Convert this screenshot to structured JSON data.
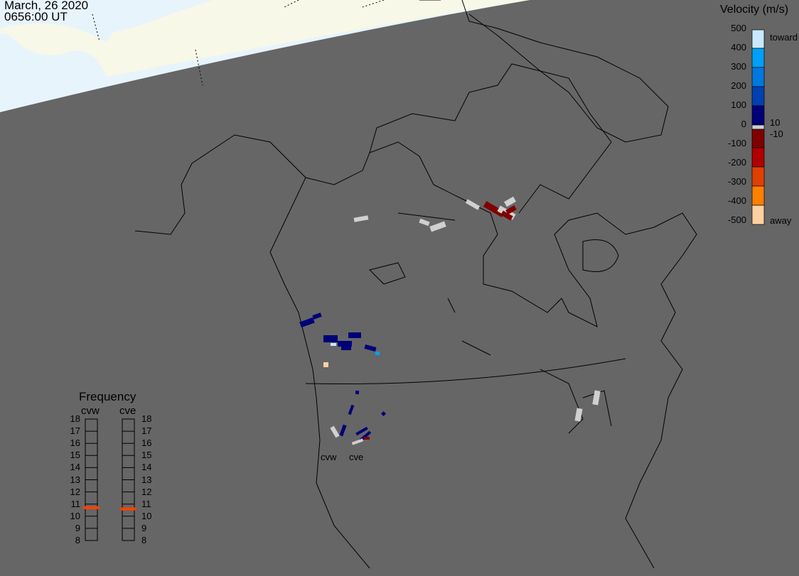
{
  "header": {
    "date": "March, 26 2020",
    "time": "0656:00 UT"
  },
  "colorbar": {
    "title": "Velocity (m/s)",
    "ticks": [
      "500",
      "400",
      "300",
      "200",
      "100",
      "0",
      "-100",
      "-200",
      "-300",
      "-400",
      "-500"
    ],
    "toward_label": "toward",
    "away_label": "away",
    "inner_pos": "10",
    "inner_neg": "-10",
    "colors_top_to_bottom": [
      "#c8e8fc",
      "#00a0f8",
      "#0078e0",
      "#0040b0",
      "#000078",
      "#d0d0d0",
      "#800000",
      "#b00000",
      "#e04000",
      "#ff8000",
      "#ffd0a0"
    ]
  },
  "frequency": {
    "title": "Frequency",
    "radars": [
      {
        "name": "cvw",
        "freq_mhz": 10.7
      },
      {
        "name": "cve",
        "freq_mhz": 10.6
      }
    ],
    "ticks": [
      "18",
      "17",
      "16",
      "15",
      "14",
      "13",
      "12",
      "11",
      "10",
      "9",
      "8"
    ],
    "range": [
      8,
      18
    ],
    "marker_color": "#ff4000"
  },
  "map": {
    "radar_labels": [
      "cvw",
      "cve"
    ],
    "background_color": "#666666",
    "dayside_ocean_color": "#e8f4fc",
    "dayside_land_color": "#f8f8e8"
  }
}
